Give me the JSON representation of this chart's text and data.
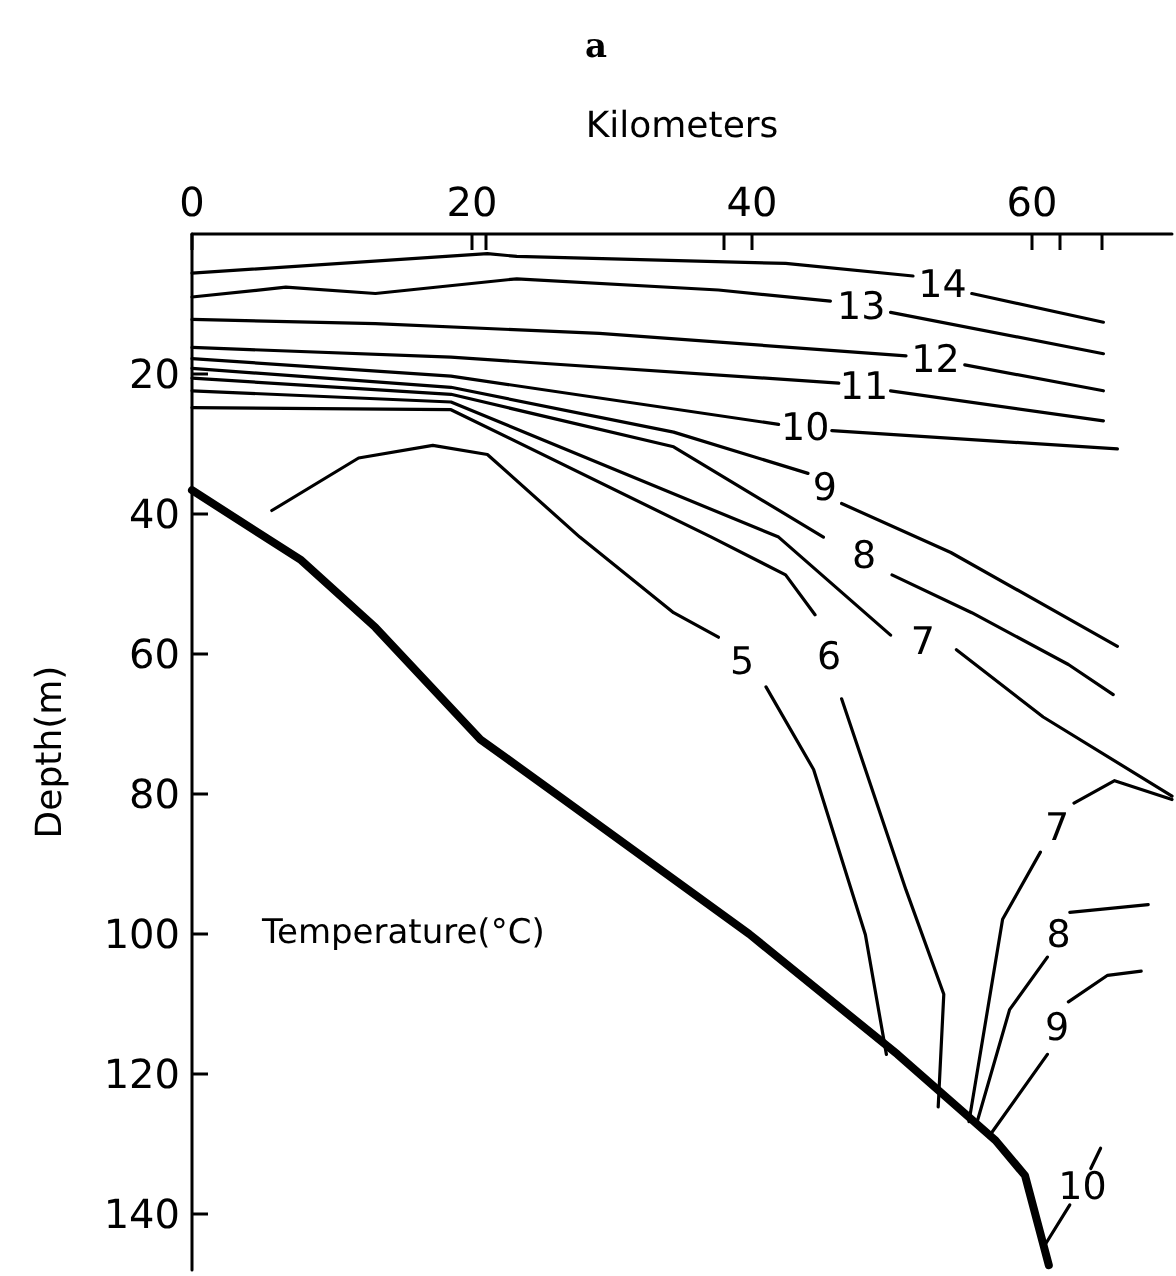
{
  "chart_data": {
    "type": "line",
    "title": "a",
    "xlabel": "Kilometers",
    "ylabel": "Depth(m)",
    "annotations": [
      "Temperature(°C)"
    ],
    "xlim": [
      0,
      70
    ],
    "ylim": [
      148,
      0
    ],
    "xticks": [
      0,
      20,
      {
        "value": 21,
        "label": null
      },
      {
        "value": 38,
        "label": null
      },
      40,
      60,
      {
        "value": 62,
        "label": null
      },
      {
        "value": 65,
        "label": null
      }
    ],
    "yticks": [
      20,
      40,
      60,
      80,
      100,
      120,
      140
    ],
    "grid": false,
    "legend": false,
    "marker": "none",
    "line_style": "solid",
    "series": [
      {
        "name": "14",
        "color": "#000000",
        "x": [
          0,
          21.1,
          23.2,
          42.4,
          51.5,
          53.6,
          55.7,
          65.1
        ],
        "values": [
          5.6,
          2.8,
          3.2,
          4.2,
          6.0,
          null,
          8.5,
          12.6
        ]
      },
      {
        "name": "13",
        "color": "#000000",
        "x": [
          0,
          6.7,
          13.1,
          23.2,
          37.6,
          45.6,
          47.8,
          49.9,
          65.1
        ],
        "values": [
          9.0,
          7.6,
          8.5,
          6.4,
          8.0,
          9.6,
          null,
          11.2,
          17.1
        ]
      },
      {
        "name": "12",
        "color": "#000000",
        "x": [
          0,
          13.1,
          29.1,
          51.0,
          53.1,
          55.2,
          65.1
        ],
        "values": [
          12.2,
          12.8,
          14.2,
          17.4,
          null,
          18.7,
          22.4
        ]
      },
      {
        "name": "11",
        "color": "#000000",
        "x": [
          0,
          18.5,
          46.2,
          48.0,
          49.9,
          65.1
        ],
        "values": [
          16.2,
          17.6,
          21.3,
          null,
          22.4,
          26.7
        ]
      },
      {
        "name": "10",
        "color": "#000000",
        "x": [
          0,
          18.5,
          41.9,
          43.8,
          45.7,
          66.1
        ],
        "values": [
          17.8,
          20.3,
          27.2,
          null,
          28.1,
          30.7
        ]
      },
      {
        "name": "9",
        "color": "#000000",
        "x": [
          0,
          18.5,
          34.4,
          44.0,
          45.2,
          46.4,
          54.2,
          66.1
        ],
        "values": [
          19.2,
          21.9,
          28.3,
          34.2,
          null,
          38.5,
          45.5,
          58.9
        ]
      },
      {
        "name": "8",
        "color": "#000000",
        "x": [
          0,
          18.5,
          34.4,
          45.1,
          48.0,
          50.0,
          55.7,
          62.6,
          65.8
        ],
        "values": [
          20.6,
          22.9,
          30.4,
          43.3,
          null,
          48.7,
          54.1,
          61.5,
          65.8
        ]
      },
      {
        "name": "7",
        "color": "#000000",
        "x": [
          0,
          18.5,
          41.9,
          49.9,
          52.2,
          54.6,
          60.8,
          70
        ],
        "values": [
          22.4,
          24.0,
          43.3,
          57.3,
          null,
          59.4,
          69.0,
          80.3
        ]
      },
      {
        "name": "6",
        "color": "#000000",
        "x": [
          0,
          18.5,
          37.1,
          42.4,
          44.5,
          45.5,
          46.4,
          51.0,
          53.7,
          53.3
        ],
        "values": [
          24.8,
          25.1,
          43.3,
          48.7,
          54.4,
          null,
          66.4,
          93.7,
          108.6,
          124.7
        ]
      },
      {
        "name": "5",
        "color": "#000000",
        "x": [
          5.7,
          11.9,
          17.2,
          21.1,
          27.7,
          34.4,
          37.6,
          39.3,
          41.0,
          44.4,
          48.1,
          49.6
        ],
        "values": [
          39.5,
          32.0,
          30.2,
          31.5,
          43.3,
          54.1,
          57.6,
          null,
          64.7,
          76.5,
          100.1,
          117.2
        ]
      },
      {
        "name": "7",
        "color": "#000000",
        "x": [
          55.5,
          57.9,
          60.6,
          61.8,
          63.0,
          65.9,
          70
        ],
        "values": [
          126.8,
          97.9,
          88.3,
          null,
          81.3,
          78.1,
          80.8
        ]
      },
      {
        "name": "8",
        "color": "#000000",
        "x": [
          56.0,
          58.4,
          61.1,
          61.9,
          62.7,
          68.3
        ],
        "values": [
          127.4,
          110.8,
          103.3,
          null,
          96.9,
          95.8
        ]
      },
      {
        "name": "9",
        "color": "#000000",
        "x": [
          56.9,
          61.1,
          61.8,
          62.6,
          65.4,
          67.8
        ],
        "values": [
          129.0,
          117.2,
          null,
          109.7,
          105.9,
          105.3
        ]
      },
      {
        "name": "10",
        "color": "#000000",
        "x": [
          60.9,
          62.7,
          63.6,
          64.2,
          64.9
        ],
        "values": [
          144.5,
          138.7,
          null,
          133.5,
          130.6
        ]
      },
      {
        "color": "#000000",
        "x": [
          0,
          7.8,
          13.1,
          20.6,
          26.5,
          39.8,
          50.4,
          57.4,
          59.5,
          61.2
        ],
        "values": [
          36.6,
          46.6,
          56.2,
          72.2,
          80.7,
          100.0,
          117.2,
          129.5,
          134.5,
          147.3
        ]
      }
    ]
  }
}
